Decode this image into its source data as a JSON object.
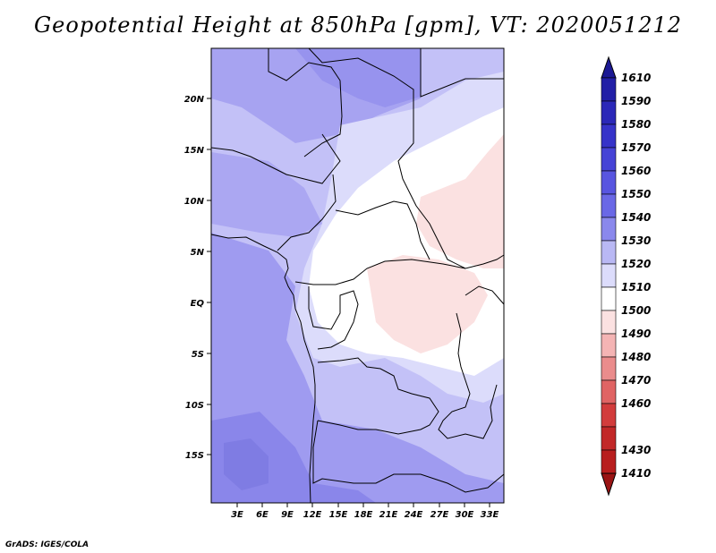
{
  "title": "Geopotential Height at 850hPa [gpm], VT: 2020051212",
  "footer": "GrADS: IGES/COLA",
  "map": {
    "lat_labels": [
      "20N",
      "15N",
      "10N",
      "5N",
      "EQ",
      "5S",
      "10S",
      "15S"
    ],
    "lon_labels": [
      "3E",
      "6E",
      "9E",
      "12E",
      "15E",
      "18E",
      "21E",
      "24E",
      "27E",
      "30E",
      "33E"
    ],
    "colors": {
      "purple_dark": "#7f7ce3",
      "purple_mid": "#9f9bf0",
      "purple_light": "#c3c1f7",
      "lavender": "#dcdcfb",
      "white": "#ffffff",
      "pink": "#fbe1e1"
    }
  },
  "colorbar": {
    "labels": [
      "1610",
      "1590",
      "1580",
      "1570",
      "1560",
      "1550",
      "1540",
      "1530",
      "1520",
      "1510",
      "1500",
      "1490",
      "1480",
      "1470",
      "1460",
      "1430",
      "1410"
    ],
    "colors": [
      "#1c1994",
      "#221fa6",
      "#2b28b8",
      "#3633c9",
      "#4643d6",
      "#5855e0",
      "#6a68e6",
      "#8a88ec",
      "#b9b8f4",
      "#dcdcfb",
      "#ffffff",
      "#fbe1e1",
      "#f4b4b4",
      "#ea8c8c",
      "#e06464",
      "#d23c3c",
      "#b81e1e",
      "#9a1414"
    ]
  }
}
